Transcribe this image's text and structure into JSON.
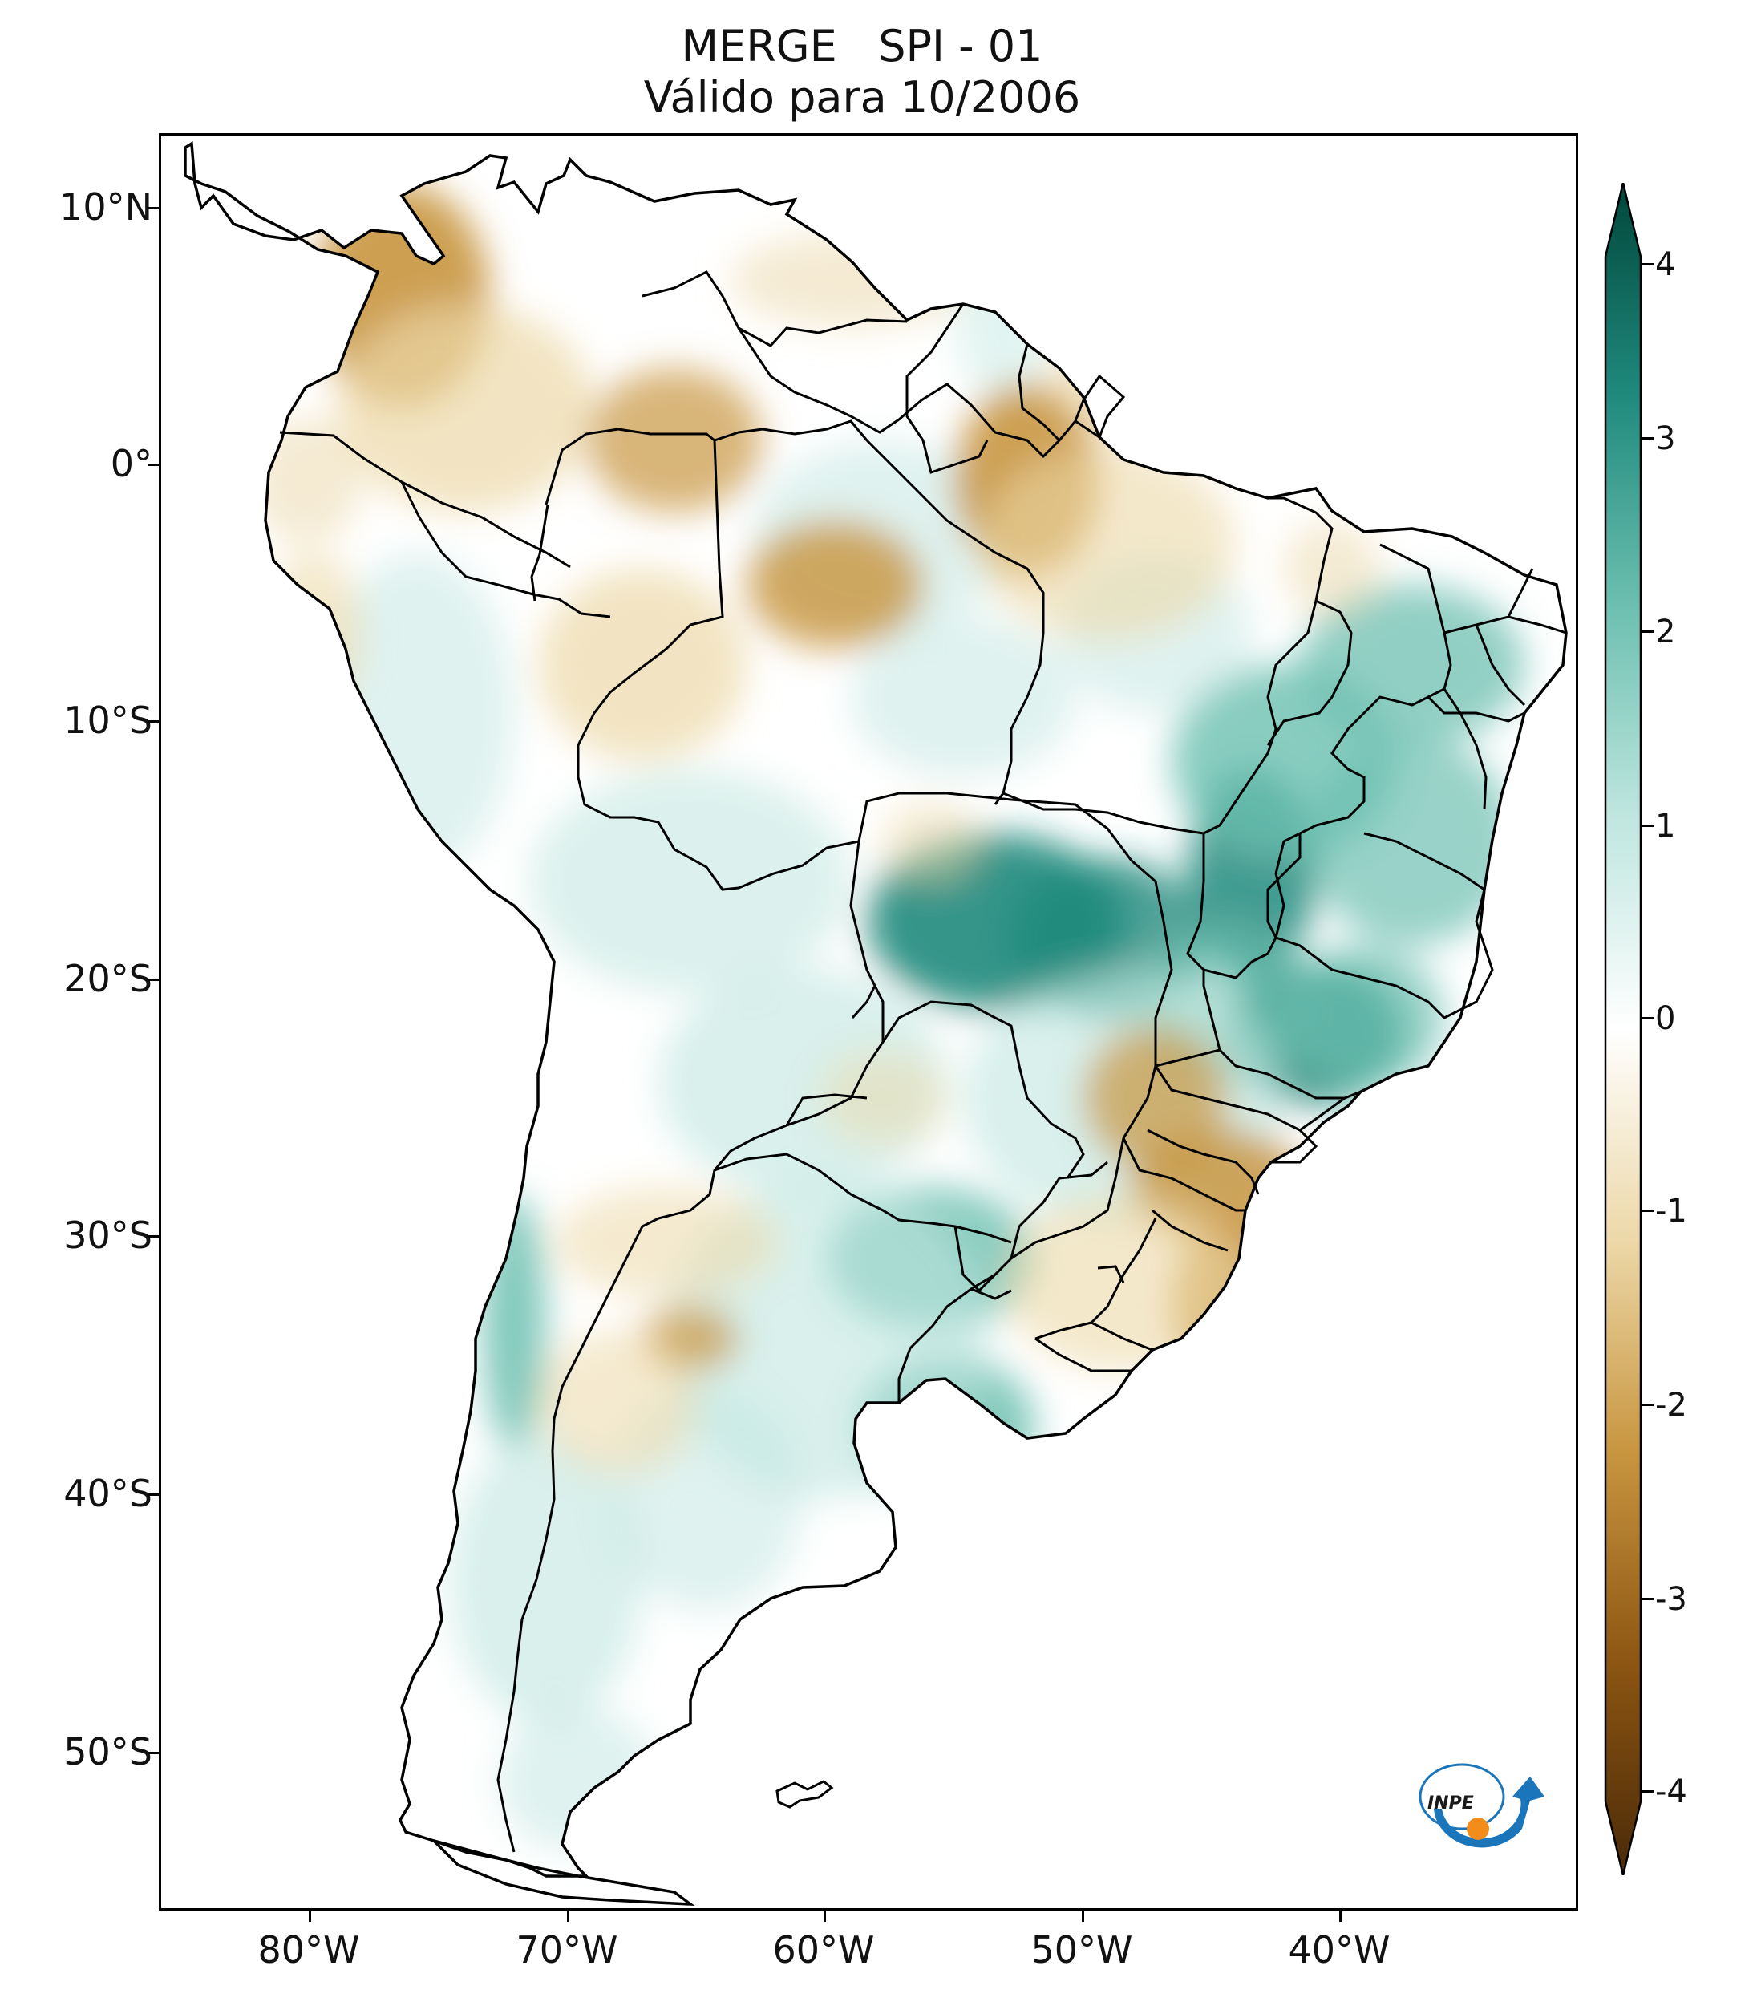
{
  "title": {
    "line1": "MERGE   SPI - 01",
    "line2": "Válido para 10/2006"
  },
  "axes": {
    "lat_labels": [
      "10°N",
      "0°",
      "10°S",
      "20°S",
      "30°S",
      "40°S",
      "50°S"
    ],
    "lon_labels": [
      "80°W",
      "70°W",
      "60°W",
      "50°W",
      "40°W"
    ]
  },
  "colorbar": {
    "ticks": [
      "4",
      "3",
      "2",
      "1",
      "0",
      "-1",
      "-2",
      "-3",
      "-4"
    ],
    "colors": {
      "dry_extreme": "#4a2a08",
      "dry_strong": "#8c5512",
      "dry_moderate": "#c8953f",
      "dry_mild": "#ecd8a8",
      "neutral": "#ffffff",
      "wet_mild": "#bfe6df",
      "wet_moderate": "#6cbfb0",
      "wet_strong": "#1f8a7c",
      "wet_extreme": "#01463b"
    }
  },
  "logo": {
    "text": "INPE",
    "colors": {
      "arc": "#1a75bb",
      "dot": "#f28c1a"
    }
  }
}
